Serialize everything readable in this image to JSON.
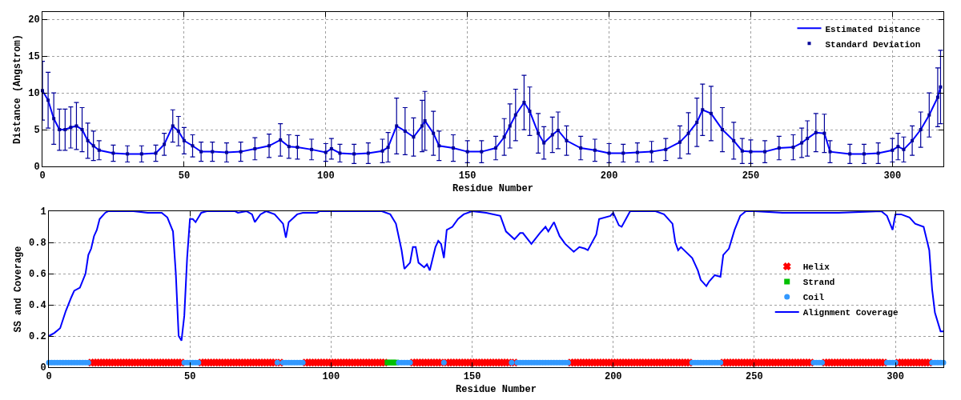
{
  "chart_data": [
    {
      "type": "line",
      "xlabel": "Residue Number",
      "ylabel": "Distance (Angstrom)",
      "x": [
        0,
        2,
        4,
        6,
        8,
        10,
        12,
        14,
        16,
        18,
        20,
        25,
        30,
        35,
        40,
        43,
        46,
        48,
        50,
        53,
        56,
        60,
        65,
        70,
        75,
        80,
        84,
        87,
        90,
        95,
        100,
        102,
        105,
        110,
        115,
        120,
        122,
        125,
        128,
        131,
        134,
        135,
        138,
        140,
        145,
        150,
        155,
        160,
        163,
        165,
        167,
        170,
        172,
        175,
        177,
        180,
        182,
        185,
        190,
        195,
        200,
        205,
        210,
        215,
        220,
        225,
        228,
        231,
        233,
        236,
        240,
        244,
        247,
        250,
        255,
        260,
        265,
        268,
        270,
        273,
        276,
        278,
        285,
        290,
        295,
        300,
        302,
        304,
        307,
        310,
        313,
        316,
        317
      ],
      "series": [
        {
          "name": "Estimated Distance",
          "color": "#0000ff",
          "values": [
            10.3,
            9,
            6.5,
            5,
            5,
            5.3,
            5.5,
            5,
            3.5,
            2.8,
            2.2,
            1.8,
            1.7,
            1.7,
            1.8,
            3,
            5.5,
            4.8,
            3.5,
            2.8,
            2,
            2,
            1.9,
            2,
            2.4,
            2.8,
            3.6,
            2.7,
            2.6,
            2.3,
            1.9,
            2.4,
            1.8,
            1.7,
            1.8,
            2.1,
            2.6,
            5.5,
            4.8,
            4,
            5.5,
            6.2,
            4.5,
            2.8,
            2.5,
            2,
            2,
            2.5,
            4,
            5.5,
            7,
            8.7,
            7.5,
            4.5,
            3.2,
            4.3,
            4.9,
            3.5,
            2.5,
            2.2,
            1.8,
            1.8,
            1.9,
            2,
            2.3,
            3.3,
            4.5,
            6,
            7.7,
            7.2,
            5,
            3.5,
            2.1,
            2,
            2,
            2.5,
            2.6,
            3.2,
            3.8,
            4.6,
            4.5,
            2,
            1.7,
            1.7,
            1.8,
            2.2,
            2.7,
            2.3,
            3.5,
            5,
            7,
            9.4,
            10.8
          ]
        },
        {
          "name": "Standard Deviation",
          "type": "scatter",
          "marker": "square",
          "color": "#000099",
          "values": [
            10.3,
            9,
            6.5,
            5,
            5,
            5.3,
            5.5,
            5,
            3.5,
            2.8,
            2.2,
            1.8,
            1.7,
            1.7,
            1.8,
            3,
            5.5,
            4.8,
            3.5,
            2.8,
            2,
            2,
            1.9,
            2,
            2.4,
            2.8,
            3.6,
            2.7,
            2.6,
            2.3,
            1.9,
            2.4,
            1.8,
            1.7,
            1.8,
            2.1,
            2.6,
            5.5,
            4.8,
            4,
            5.5,
            6.2,
            4.5,
            2.8,
            2.5,
            2,
            2,
            2.5,
            4,
            5.5,
            7,
            8.7,
            7.5,
            4.5,
            3.2,
            4.3,
            4.9,
            3.5,
            2.5,
            2.2,
            1.8,
            1.8,
            1.9,
            2,
            2.3,
            3.3,
            4.5,
            6,
            7.7,
            7.2,
            5,
            3.5,
            2.1,
            2,
            2,
            2.5,
            2.6,
            3.2,
            3.8,
            4.6,
            4.5,
            2,
            1.7,
            1.7,
            1.8,
            2.2,
            2.7,
            2.3,
            3.5,
            5,
            7,
            9.4,
            10.8
          ],
          "errors": [
            4,
            3.8,
            3.5,
            2.8,
            2.8,
            2.8,
            3.2,
            3,
            2.4,
            2,
            1.3,
            1.1,
            1.1,
            1.1,
            1.1,
            1.5,
            2.2,
            2,
            1.8,
            1.5,
            1.3,
            1.3,
            1.3,
            1.3,
            1.5,
            1.6,
            2.2,
            1.6,
            1.6,
            1.4,
            1.2,
            1.4,
            1.2,
            1.3,
            1.4,
            1.6,
            2,
            3.8,
            3.2,
            2.6,
            3.5,
            4,
            3,
            2,
            1.8,
            1.5,
            1.5,
            1.6,
            2.5,
            3,
            3.5,
            3.7,
            3.3,
            2.7,
            2.2,
            2.4,
            2.5,
            2,
            1.6,
            1.5,
            1.3,
            1.2,
            1.3,
            1.4,
            1.5,
            2.2,
            2.8,
            3.3,
            3.5,
            3.7,
            3,
            2.5,
            1.7,
            1.6,
            1.5,
            1.6,
            1.7,
            2,
            2.4,
            2.6,
            2.6,
            1.5,
            1.3,
            1.3,
            1.4,
            1.6,
            1.8,
            1.7,
            2,
            2.4,
            3,
            4,
            5
          ]
        }
      ],
      "xlim": [
        0,
        318
      ],
      "xticks": [
        0,
        50,
        100,
        150,
        200,
        250,
        300
      ],
      "ylim": [
        0,
        21
      ],
      "yticks": [
        0,
        5,
        10,
        15,
        20
      ],
      "grid": true,
      "legend": "top right"
    },
    {
      "type": "line",
      "xlabel": "Residue Number",
      "ylabel": "SS and Coverage",
      "series": [
        {
          "name": "Helix",
          "type": "scatter",
          "marker": "cross",
          "color": "#ff0000",
          "x": [
            15,
            16,
            17,
            18,
            19,
            20,
            21,
            22,
            23,
            24,
            25,
            26,
            27,
            28,
            29,
            30,
            31,
            32,
            33,
            34,
            35,
            36,
            37,
            38,
            39,
            40,
            41,
            42,
            43,
            44,
            45,
            46,
            47,
            54,
            55,
            56,
            57,
            58,
            59,
            60,
            61,
            62,
            63,
            64,
            65,
            66,
            67,
            68,
            69,
            70,
            71,
            72,
            73,
            74,
            75,
            76,
            77,
            78,
            79,
            80,
            82,
            91,
            92,
            93,
            94,
            95,
            96,
            97,
            98,
            99,
            100,
            101,
            102,
            103,
            104,
            105,
            106,
            107,
            108,
            109,
            110,
            111,
            112,
            113,
            114,
            115,
            116,
            117,
            118,
            119,
            129,
            130,
            131,
            132,
            133,
            134,
            135,
            136,
            137,
            138,
            139,
            141,
            142,
            143,
            144,
            145,
            146,
            147,
            148,
            149,
            150,
            151,
            152,
            153,
            154,
            155,
            156,
            157,
            158,
            159,
            160,
            161,
            162,
            163,
            165,
            185,
            186,
            187,
            188,
            189,
            190,
            191,
            192,
            193,
            194,
            195,
            196,
            197,
            198,
            199,
            200,
            201,
            202,
            203,
            204,
            205,
            206,
            207,
            208,
            209,
            210,
            211,
            212,
            213,
            214,
            215,
            216,
            217,
            218,
            219,
            220,
            221,
            222,
            223,
            224,
            225,
            226,
            227,
            239,
            240,
            241,
            242,
            243,
            244,
            245,
            246,
            247,
            248,
            249,
            250,
            251,
            252,
            253,
            254,
            255,
            256,
            257,
            258,
            259,
            260,
            261,
            262,
            263,
            264,
            265,
            266,
            267,
            268,
            269,
            270,
            275,
            276,
            277,
            278,
            279,
            280,
            281,
            282,
            283,
            284,
            285,
            286,
            287,
            288,
            289,
            290,
            291,
            292,
            293,
            294,
            295,
            296,
            301,
            302,
            303,
            304,
            305,
            306,
            307,
            308,
            309,
            310,
            311,
            312
          ],
          "values": [
            0.03,
            0.03,
            0.03,
            0.03,
            0.03,
            0.03,
            0.03,
            0.03,
            0.03,
            0.03,
            0.03,
            0.03,
            0.03,
            0.03,
            0.03,
            0.03,
            0.03,
            0.03,
            0.03,
            0.03,
            0.03,
            0.03,
            0.03,
            0.03,
            0.03,
            0.03,
            0.03,
            0.03,
            0.03,
            0.03,
            0.03,
            0.03,
            0.03,
            0.03,
            0.03,
            0.03,
            0.03,
            0.03,
            0.03,
            0.03,
            0.03,
            0.03,
            0.03,
            0.03,
            0.03,
            0.03,
            0.03,
            0.03,
            0.03,
            0.03,
            0.03,
            0.03,
            0.03,
            0.03,
            0.03,
            0.03,
            0.03,
            0.03,
            0.03,
            0.03,
            0.03,
            0.03,
            0.03,
            0.03,
            0.03,
            0.03,
            0.03,
            0.03,
            0.03,
            0.03,
            0.03,
            0.03,
            0.03,
            0.03,
            0.03,
            0.03,
            0.03,
            0.03,
            0.03,
            0.03,
            0.03,
            0.03,
            0.03,
            0.03,
            0.03,
            0.03,
            0.03,
            0.03,
            0.03,
            0.03,
            0.03,
            0.03,
            0.03,
            0.03,
            0.03,
            0.03,
            0.03,
            0.03,
            0.03,
            0.03,
            0.03,
            0.03,
            0.03,
            0.03,
            0.03,
            0.03,
            0.03,
            0.03,
            0.03,
            0.03,
            0.03,
            0.03,
            0.03,
            0.03,
            0.03,
            0.03,
            0.03,
            0.03,
            0.03,
            0.03,
            0.03,
            0.03,
            0.03,
            0.03,
            0.03,
            0.03,
            0.03,
            0.03,
            0.03,
            0.03,
            0.03,
            0.03,
            0.03,
            0.03,
            0.03,
            0.03,
            0.03,
            0.03,
            0.03,
            0.03,
            0.03,
            0.03,
            0.03,
            0.03,
            0.03,
            0.03,
            0.03,
            0.03,
            0.03,
            0.03,
            0.03,
            0.03,
            0.03,
            0.03,
            0.03,
            0.03,
            0.03,
            0.03,
            0.03,
            0.03,
            0.03,
            0.03,
            0.03,
            0.03,
            0.03,
            0.03,
            0.03,
            0.03,
            0.03,
            0.03,
            0.03,
            0.03,
            0.03,
            0.03,
            0.03,
            0.03,
            0.03,
            0.03,
            0.03,
            0.03,
            0.03,
            0.03,
            0.03,
            0.03,
            0.03,
            0.03,
            0.03,
            0.03,
            0.03,
            0.03,
            0.03,
            0.03,
            0.03,
            0.03,
            0.03,
            0.03,
            0.03,
            0.03,
            0.03,
            0.03,
            0.03,
            0.03,
            0.03,
            0.03,
            0.03,
            0.03,
            0.03,
            0.03,
            0.03,
            0.03,
            0.03,
            0.03,
            0.03,
            0.03,
            0.03,
            0.03,
            0.03,
            0.03,
            0.03,
            0.03,
            0.03,
            0.03,
            0.03,
            0.03,
            0.03,
            0.03,
            0.03,
            0.03,
            0.03,
            0.03,
            0.03,
            0.03,
            0.03,
            0.03
          ]
        },
        {
          "name": "Strand",
          "type": "scatter",
          "marker": "square",
          "color": "#00c000",
          "x": [
            120,
            121,
            122,
            123
          ],
          "values": [
            0.03,
            0.03,
            0.03,
            0.03
          ]
        },
        {
          "name": "Coil",
          "type": "scatter",
          "marker": "circle",
          "color": "#3399ff",
          "x": [
            0,
            1,
            2,
            3,
            4,
            5,
            6,
            7,
            8,
            9,
            10,
            11,
            12,
            13,
            14,
            48,
            49,
            50,
            51,
            52,
            53,
            81,
            83,
            84,
            85,
            86,
            87,
            88,
            89,
            90,
            124,
            125,
            126,
            127,
            128,
            140,
            164,
            166,
            167,
            168,
            169,
            170,
            171,
            172,
            173,
            174,
            175,
            176,
            177,
            178,
            179,
            180,
            181,
            182,
            183,
            184,
            228,
            229,
            230,
            231,
            232,
            233,
            234,
            235,
            236,
            237,
            238,
            271,
            272,
            273,
            274,
            297,
            298,
            299,
            300,
            313,
            314,
            315,
            316,
            317
          ],
          "values": [
            0.03,
            0.03,
            0.03,
            0.03,
            0.03,
            0.03,
            0.03,
            0.03,
            0.03,
            0.03,
            0.03,
            0.03,
            0.03,
            0.03,
            0.03,
            0.03,
            0.03,
            0.03,
            0.03,
            0.03,
            0.03,
            0.03,
            0.03,
            0.03,
            0.03,
            0.03,
            0.03,
            0.03,
            0.03,
            0.03,
            0.03,
            0.03,
            0.03,
            0.03,
            0.03,
            0.03,
            0.03,
            0.03,
            0.03,
            0.03,
            0.03,
            0.03,
            0.03,
            0.03,
            0.03,
            0.03,
            0.03,
            0.03,
            0.03,
            0.03,
            0.03,
            0.03,
            0.03,
            0.03,
            0.03,
            0.03,
            0.03,
            0.03,
            0.03,
            0.03,
            0.03,
            0.03,
            0.03,
            0.03,
            0.03,
            0.03,
            0.03,
            0.03,
            0.03,
            0.03,
            0.03,
            0.03,
            0.03,
            0.03,
            0.03,
            0.03,
            0.03,
            0.03,
            0.03,
            0.03
          ]
        },
        {
          "name": "Alignment Coverage",
          "type": "line",
          "color": "#0000ff",
          "x": [
            0,
            2,
            4,
            6,
            8,
            9,
            11,
            13,
            14,
            15,
            16,
            17,
            18,
            20,
            21,
            30,
            35,
            40,
            42,
            44,
            45,
            46,
            47,
            48,
            49,
            50,
            51,
            52,
            54,
            56,
            66,
            67,
            70,
            72,
            73,
            75,
            77,
            80,
            83,
            84,
            85,
            88,
            90,
            95,
            96,
            118,
            121,
            123,
            125,
            126,
            128,
            129,
            130,
            131,
            133,
            134,
            135,
            137,
            138,
            139,
            140,
            141,
            143,
            145,
            147,
            150,
            155,
            160,
            162,
            165,
            167,
            168,
            171,
            174,
            176,
            177,
            179,
            181,
            183,
            186,
            188,
            190,
            191,
            194,
            195,
            199,
            200,
            202,
            203,
            206,
            215,
            218,
            221,
            222,
            223,
            224,
            228,
            230,
            231,
            233,
            234,
            236,
            238,
            239,
            241,
            243,
            245,
            247,
            250,
            260,
            270,
            280,
            295,
            297,
            299,
            300,
            302,
            305,
            307,
            310,
            312,
            313,
            314,
            316,
            317
          ],
          "values": [
            0.2,
            0.22,
            0.25,
            0.36,
            0.45,
            0.49,
            0.51,
            0.6,
            0.72,
            0.76,
            0.84,
            0.88,
            0.95,
            0.99,
            1,
            1,
            0.99,
            0.99,
            0.96,
            0.87,
            0.6,
            0.2,
            0.17,
            0.33,
            0.7,
            0.95,
            0.95,
            0.93,
            0.99,
            1,
            1,
            0.99,
            1,
            0.98,
            0.93,
            0.98,
            1,
            0.98,
            0.92,
            0.83,
            0.93,
            0.98,
            0.99,
            0.99,
            1,
            1,
            0.98,
            0.92,
            0.75,
            0.63,
            0.67,
            0.77,
            0.77,
            0.67,
            0.64,
            0.66,
            0.62,
            0.77,
            0.81,
            0.79,
            0.7,
            0.88,
            0.9,
            0.95,
            0.98,
            1,
            0.99,
            0.97,
            0.87,
            0.82,
            0.86,
            0.86,
            0.79,
            0.86,
            0.9,
            0.87,
            0.93,
            0.84,
            0.79,
            0.74,
            0.77,
            0.76,
            0.75,
            0.85,
            0.95,
            0.97,
            0.99,
            0.91,
            0.9,
            1,
            1,
            0.98,
            0.92,
            0.8,
            0.75,
            0.77,
            0.7,
            0.62,
            0.56,
            0.52,
            0.55,
            0.59,
            0.58,
            0.72,
            0.76,
            0.88,
            0.97,
            1,
            1,
            0.99,
            0.99,
            0.99,
            1,
            0.97,
            0.88,
            0.98,
            0.98,
            0.96,
            0.92,
            0.9,
            0.75,
            0.5,
            0.35,
            0.23,
            0.23
          ]
        }
      ],
      "xlim": [
        0,
        317
      ],
      "xticks": [
        0,
        50,
        100,
        150,
        200,
        250,
        300
      ],
      "ylim": [
        0,
        1
      ],
      "yticks": [
        0,
        0.2,
        0.4,
        0.6,
        0.8,
        1
      ],
      "grid": true,
      "legend": "right"
    }
  ]
}
